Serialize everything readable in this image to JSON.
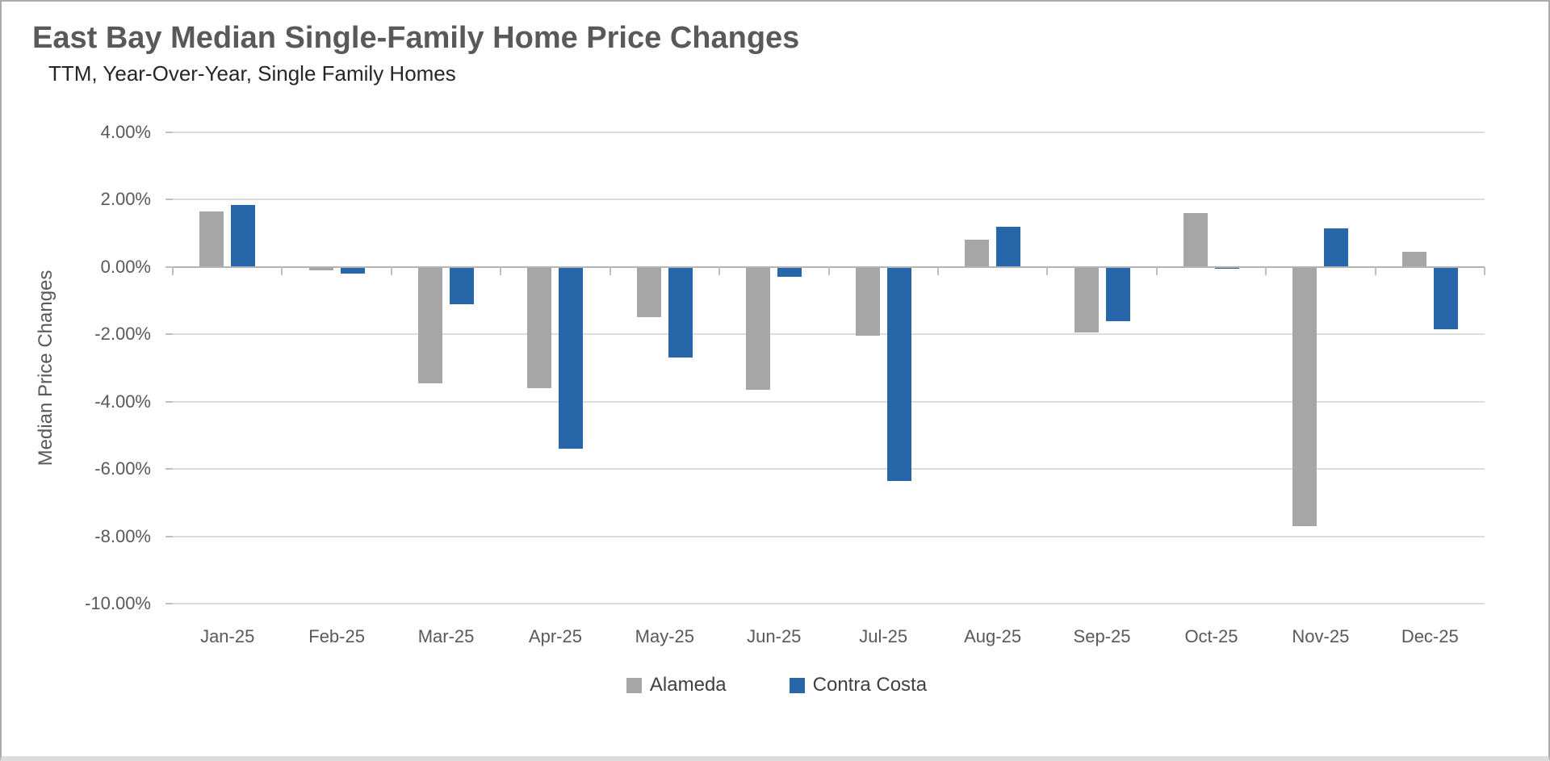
{
  "chart_data": {
    "type": "bar",
    "title": "East Bay Median Single-Family Home Price Changes",
    "subtitle": "TTM, Year-Over-Year, Single Family Homes",
    "ylabel": "Median Price Changes",
    "xlabel": "",
    "categories": [
      "Jan-25",
      "Feb-25",
      "Mar-25",
      "Apr-25",
      "May-25",
      "Jun-25",
      "Jul-25",
      "Aug-25",
      "Sep-25",
      "Oct-25",
      "Nov-25",
      "Dec-25"
    ],
    "series": [
      {
        "name": "Alameda",
        "color": "#A6A6A6",
        "values": [
          1.65,
          -0.1,
          -3.45,
          -3.6,
          -1.5,
          -3.65,
          -2.05,
          0.8,
          -1.95,
          1.6,
          -7.7,
          0.45
        ]
      },
      {
        "name": "Contra Costa",
        "color": "#2766A9",
        "values": [
          1.85,
          -0.2,
          -1.1,
          -5.4,
          -2.7,
          -0.3,
          -6.35,
          1.2,
          -1.6,
          -0.05,
          1.15,
          -1.85
        ]
      }
    ],
    "ylim": [
      -10,
      4
    ],
    "yticks": [
      {
        "v": 4,
        "label": "4.00%"
      },
      {
        "v": 2,
        "label": "2.00%"
      },
      {
        "v": 0,
        "label": "0.00%"
      },
      {
        "v": -2,
        "label": "-2.00%"
      },
      {
        "v": -4,
        "label": "-4.00%"
      },
      {
        "v": -6,
        "label": "-6.00%"
      },
      {
        "v": -8,
        "label": "-8.00%"
      },
      {
        "v": -10,
        "label": "-10.00%"
      }
    ],
    "grid": true,
    "legend_position": "bottom"
  },
  "colors": {
    "background": "#FFFFFF",
    "gridline": "#DCDCDC",
    "zero_axis": "#B3B3B3",
    "tick": "#BFBFBF",
    "title_text": "#595959",
    "subtitle_text": "#262626",
    "axis_text": "#595959",
    "legend_text": "#404040"
  }
}
